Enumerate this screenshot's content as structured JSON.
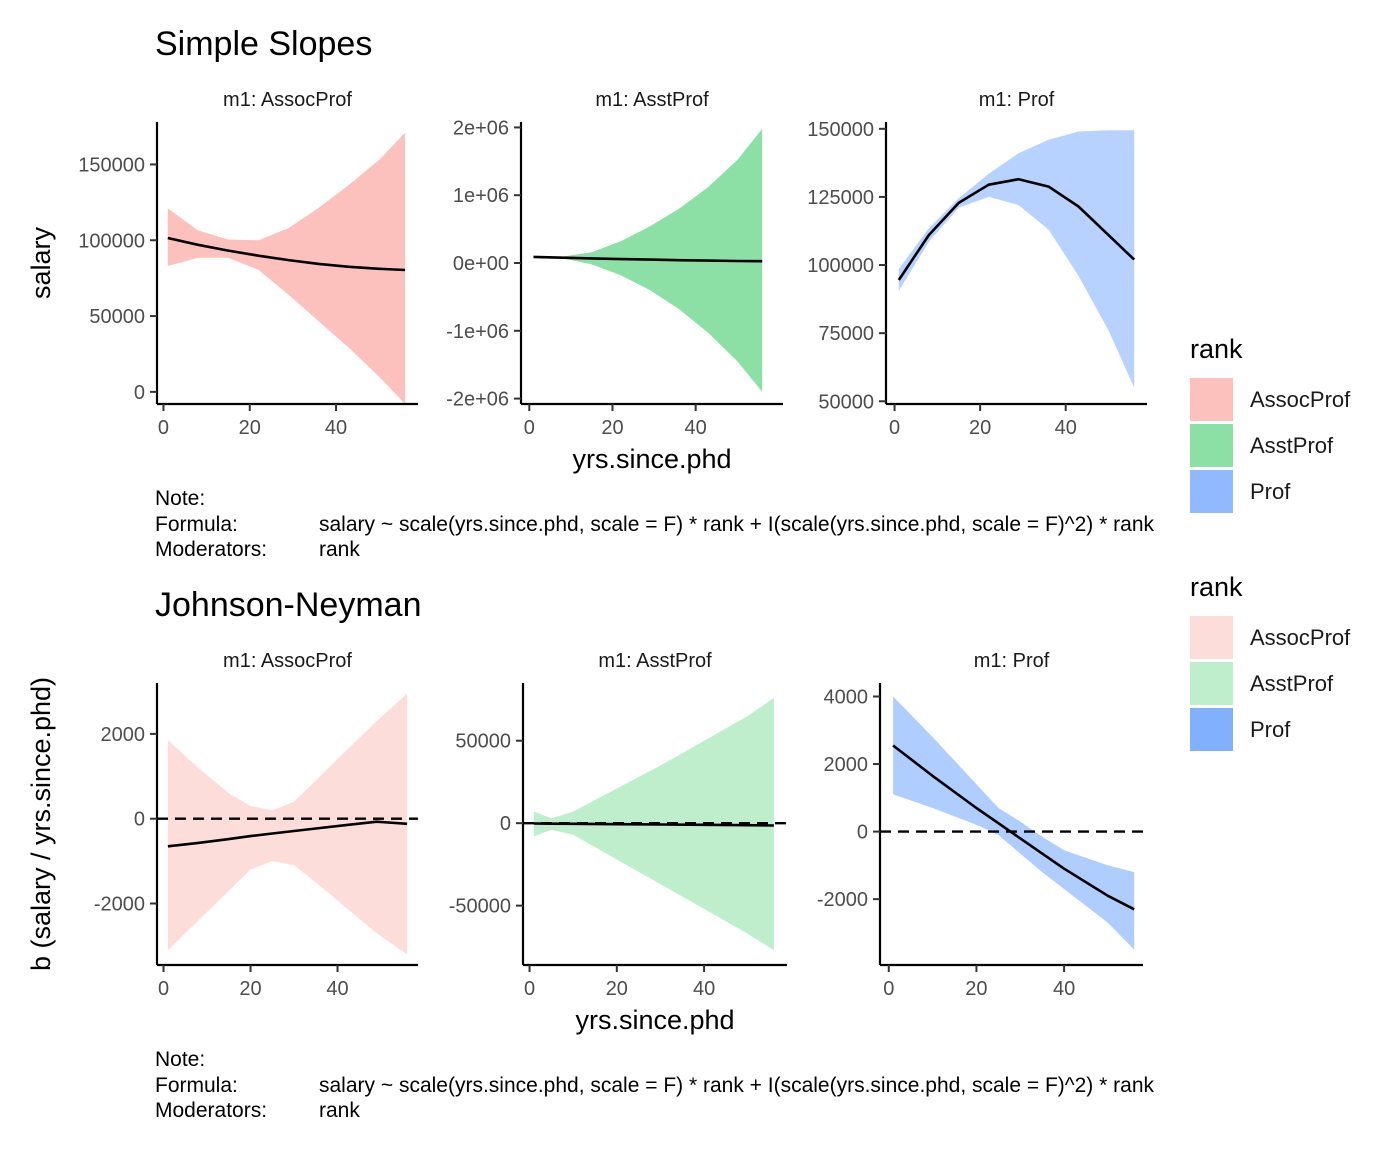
{
  "colors": {
    "assocprof": "#F8766D",
    "asstprof": "#00BA38",
    "prof": "#619CFF",
    "line": "#000000",
    "axis": "#000000"
  },
  "notes": [
    {
      "note_label": "Note:",
      "formula_label": "Formula:",
      "formula": "salary ~ scale(yrs.since.phd, scale = F) * rank + I(scale(yrs.since.phd, scale = F)^2) * rank",
      "moderators_label": "Moderators:",
      "moderators": "rank"
    },
    {
      "note_label": "Note:",
      "formula_label": "Formula:",
      "formula": "salary ~ scale(yrs.since.phd, scale = F) * rank + I(scale(yrs.since.phd, scale = F)^2) * rank",
      "moderators_label": "Moderators:",
      "moderators": "rank"
    }
  ],
  "chart_data": [
    {
      "type": "line",
      "title": "Simple Slopes",
      "xlabel": "yrs.since.phd",
      "ylabel": "salary",
      "legend": {
        "title": "rank",
        "position": "right",
        "entries": [
          "AssocProf",
          "AsstProf",
          "Prof"
        ],
        "alpha": 0.45
      },
      "ribbon_alpha": 0.45,
      "grid": false,
      "panels": [
        {
          "strip": "m1: AssocProf",
          "color": "#F8766D",
          "xlim": [
            -1.5,
            59
          ],
          "ylim": [
            -8000,
            178000
          ],
          "xticks": [
            0,
            20,
            40
          ],
          "xtick_labels": [
            "0",
            "20",
            "40"
          ],
          "yticks": [
            0,
            50000,
            100000,
            150000
          ],
          "ytick_labels": [
            "0",
            "50000",
            "100000",
            "150000"
          ],
          "x": [
            1,
            8,
            15,
            22,
            29,
            36,
            43,
            50,
            56
          ],
          "y": [
            101500,
            97000,
            93200,
            89800,
            86900,
            84400,
            82500,
            81200,
            80400
          ],
          "lower": [
            83000,
            88500,
            88500,
            80500,
            64000,
            46500,
            29000,
            10000,
            -8000
          ],
          "upper": [
            121000,
            106500,
            100500,
            100000,
            108000,
            121500,
            136500,
            153000,
            171000
          ]
        },
        {
          "strip": "m1: AsstProf",
          "color": "#00BA38",
          "xlim": [
            -2,
            61
          ],
          "ylim": [
            -2080000,
            2080000
          ],
          "xticks": [
            0,
            20,
            40
          ],
          "xtick_labels": [
            "0",
            "20",
            "40"
          ],
          "yticks": [
            -2000000,
            -1000000,
            0,
            1000000,
            2000000
          ],
          "ytick_labels": [
            "-2e+06",
            "-1e+06",
            "0e+00",
            "1e+06",
            "2e+06"
          ],
          "x": [
            1,
            8,
            15,
            22,
            29,
            36,
            43,
            50,
            56
          ],
          "y": [
            90000,
            78000,
            68000,
            58000,
            50000,
            42000,
            36000,
            30000,
            26000
          ],
          "lower": [
            90000,
            70000,
            -20000,
            -180000,
            -400000,
            -680000,
            -1030000,
            -1450000,
            -1900000
          ],
          "upper": [
            90000,
            95000,
            160000,
            320000,
            540000,
            800000,
            1120000,
            1520000,
            1980000
          ]
        },
        {
          "strip": "m1: Prof",
          "color": "#619CFF",
          "xlim": [
            -2,
            59
          ],
          "ylim": [
            49000,
            152500
          ],
          "xticks": [
            0,
            20,
            40
          ],
          "xtick_labels": [
            "0",
            "20",
            "40"
          ],
          "yticks": [
            50000,
            75000,
            100000,
            125000,
            150000
          ],
          "ytick_labels": [
            "50000",
            "75000",
            "100000",
            "125000",
            "150000"
          ],
          "x": [
            1,
            8,
            15,
            22,
            29,
            36,
            43,
            50,
            56
          ],
          "y": [
            94500,
            111000,
            122800,
            129500,
            131500,
            128800,
            121500,
            111000,
            102000
          ],
          "lower": [
            90500,
            108500,
            121000,
            125000,
            122000,
            113000,
            96000,
            76000,
            55000
          ],
          "upper": [
            98500,
            113500,
            124500,
            133500,
            141000,
            146000,
            149000,
            149500,
            149500
          ]
        }
      ]
    },
    {
      "type": "line",
      "title": "Johnson-Neyman",
      "xlabel": "yrs.since.phd",
      "ylabel": "b (salary / yrs.since.phd)",
      "legend": {
        "title": "rank",
        "position": "right",
        "entries": [
          "AssocProf",
          "AsstProf",
          "Prof"
        ],
        "alphas": [
          0.25,
          0.25,
          0.8
        ]
      },
      "grid": false,
      "reference_line": 0,
      "panels": [
        {
          "strip": "m1: AssocProf",
          "color": "#F8766D",
          "ribbon_alpha": 0.25,
          "xlim": [
            -1.5,
            58.5
          ],
          "ylim": [
            -3450,
            3200
          ],
          "xticks": [
            0,
            20,
            40
          ],
          "xtick_labels": [
            "0",
            "20",
            "40"
          ],
          "yticks": [
            -2000,
            0,
            2000
          ],
          "ytick_labels": [
            "-2000",
            "0",
            "2000"
          ],
          "x": [
            1,
            8,
            15,
            20,
            25,
            30,
            35,
            42,
            49,
            56
          ],
          "y": [
            -650,
            -570,
            -480,
            -410,
            -350,
            -290,
            -230,
            -150,
            -70,
            -120
          ],
          "lower": [
            -3100,
            -2400,
            -1700,
            -1200,
            -1000,
            -1100,
            -1500,
            -2100,
            -2700,
            -3200
          ],
          "upper": [
            1850,
            1200,
            600,
            300,
            200,
            400,
            900,
            1600,
            2300,
            2950
          ]
        },
        {
          "strip": "m1: AsstProf",
          "color": "#00BA38",
          "ribbon_alpha": 0.25,
          "xlim": [
            -1.5,
            59
          ],
          "ylim": [
            -86000,
            85000
          ],
          "xticks": [
            0,
            20,
            40
          ],
          "xtick_labels": [
            "0",
            "20",
            "40"
          ],
          "yticks": [
            -50000,
            0,
            50000
          ],
          "ytick_labels": [
            "-50000",
            "0",
            "50000"
          ],
          "x": [
            1,
            5,
            10,
            20,
            30,
            40,
            50,
            56
          ],
          "y": [
            -200,
            -300,
            -400,
            -600,
            -800,
            -1000,
            -1200,
            -1400
          ],
          "lower": [
            -8000,
            -4000,
            -7000,
            -22000,
            -37000,
            -52000,
            -67000,
            -77000
          ],
          "upper": [
            7000,
            3000,
            7000,
            21000,
            35000,
            50000,
            65000,
            76000
          ]
        },
        {
          "strip": "m1: Prof",
          "color": "#619CFF",
          "ribbon_alpha": 0.5,
          "xlim": [
            -2,
            58
          ],
          "ylim": [
            -3950,
            4400
          ],
          "xticks": [
            0,
            20,
            40
          ],
          "xtick_labels": [
            "0",
            "20",
            "40"
          ],
          "yticks": [
            -2000,
            0,
            2000,
            4000
          ],
          "ytick_labels": [
            "-2000",
            "0",
            "2000",
            "4000"
          ],
          "x": [
            1,
            10,
            20,
            25,
            30,
            35,
            40,
            50,
            56
          ],
          "y": [
            2550,
            1650,
            700,
            250,
            -200,
            -650,
            -1100,
            -1900,
            -2300
          ],
          "lower": [
            1100,
            700,
            200,
            -100,
            -650,
            -1200,
            -1700,
            -2700,
            -3500
          ],
          "upper": [
            4000,
            2800,
            1400,
            700,
            300,
            -150,
            -550,
            -1000,
            -1200
          ]
        }
      ]
    }
  ]
}
